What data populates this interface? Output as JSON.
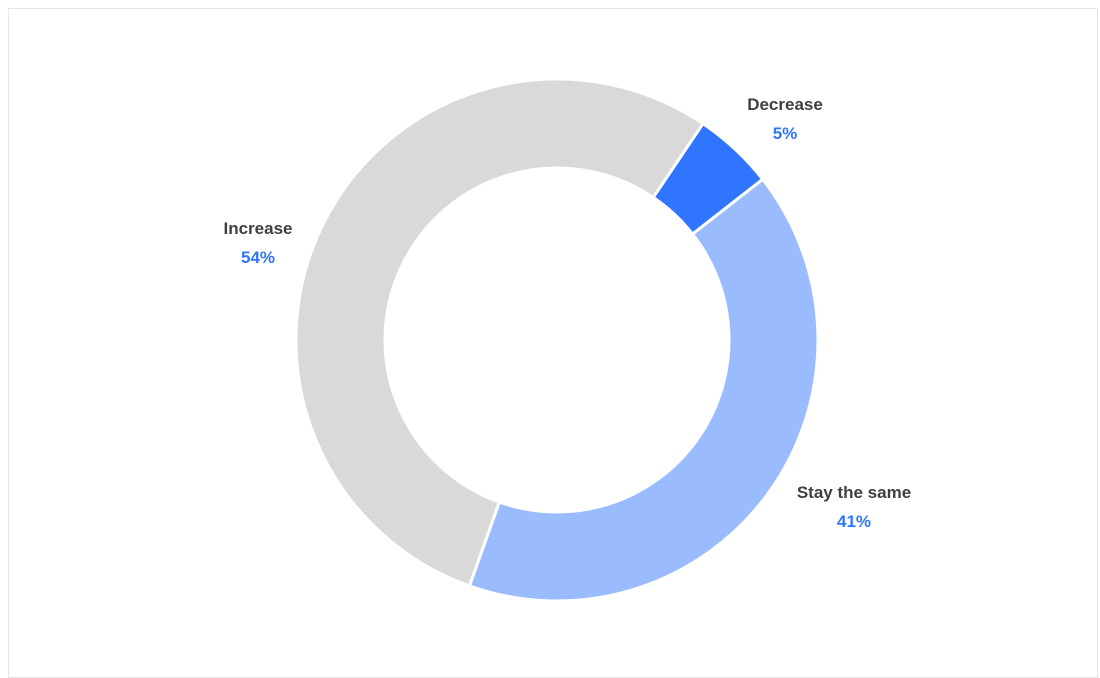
{
  "chart_data": {
    "type": "pie",
    "variant": "donut",
    "categories": [
      "Decrease",
      "Stay the same",
      "Increase"
    ],
    "values": [
      5,
      41,
      54
    ],
    "value_labels": [
      "5%",
      "41%",
      "54%"
    ],
    "colors": [
      "#2f75ff",
      "#9abcff",
      "#d9d9d9"
    ],
    "label_value_color": "#2f75ff",
    "label_name_color": "#404040",
    "start_angle_deg": 34,
    "legend": "none",
    "title": ""
  }
}
